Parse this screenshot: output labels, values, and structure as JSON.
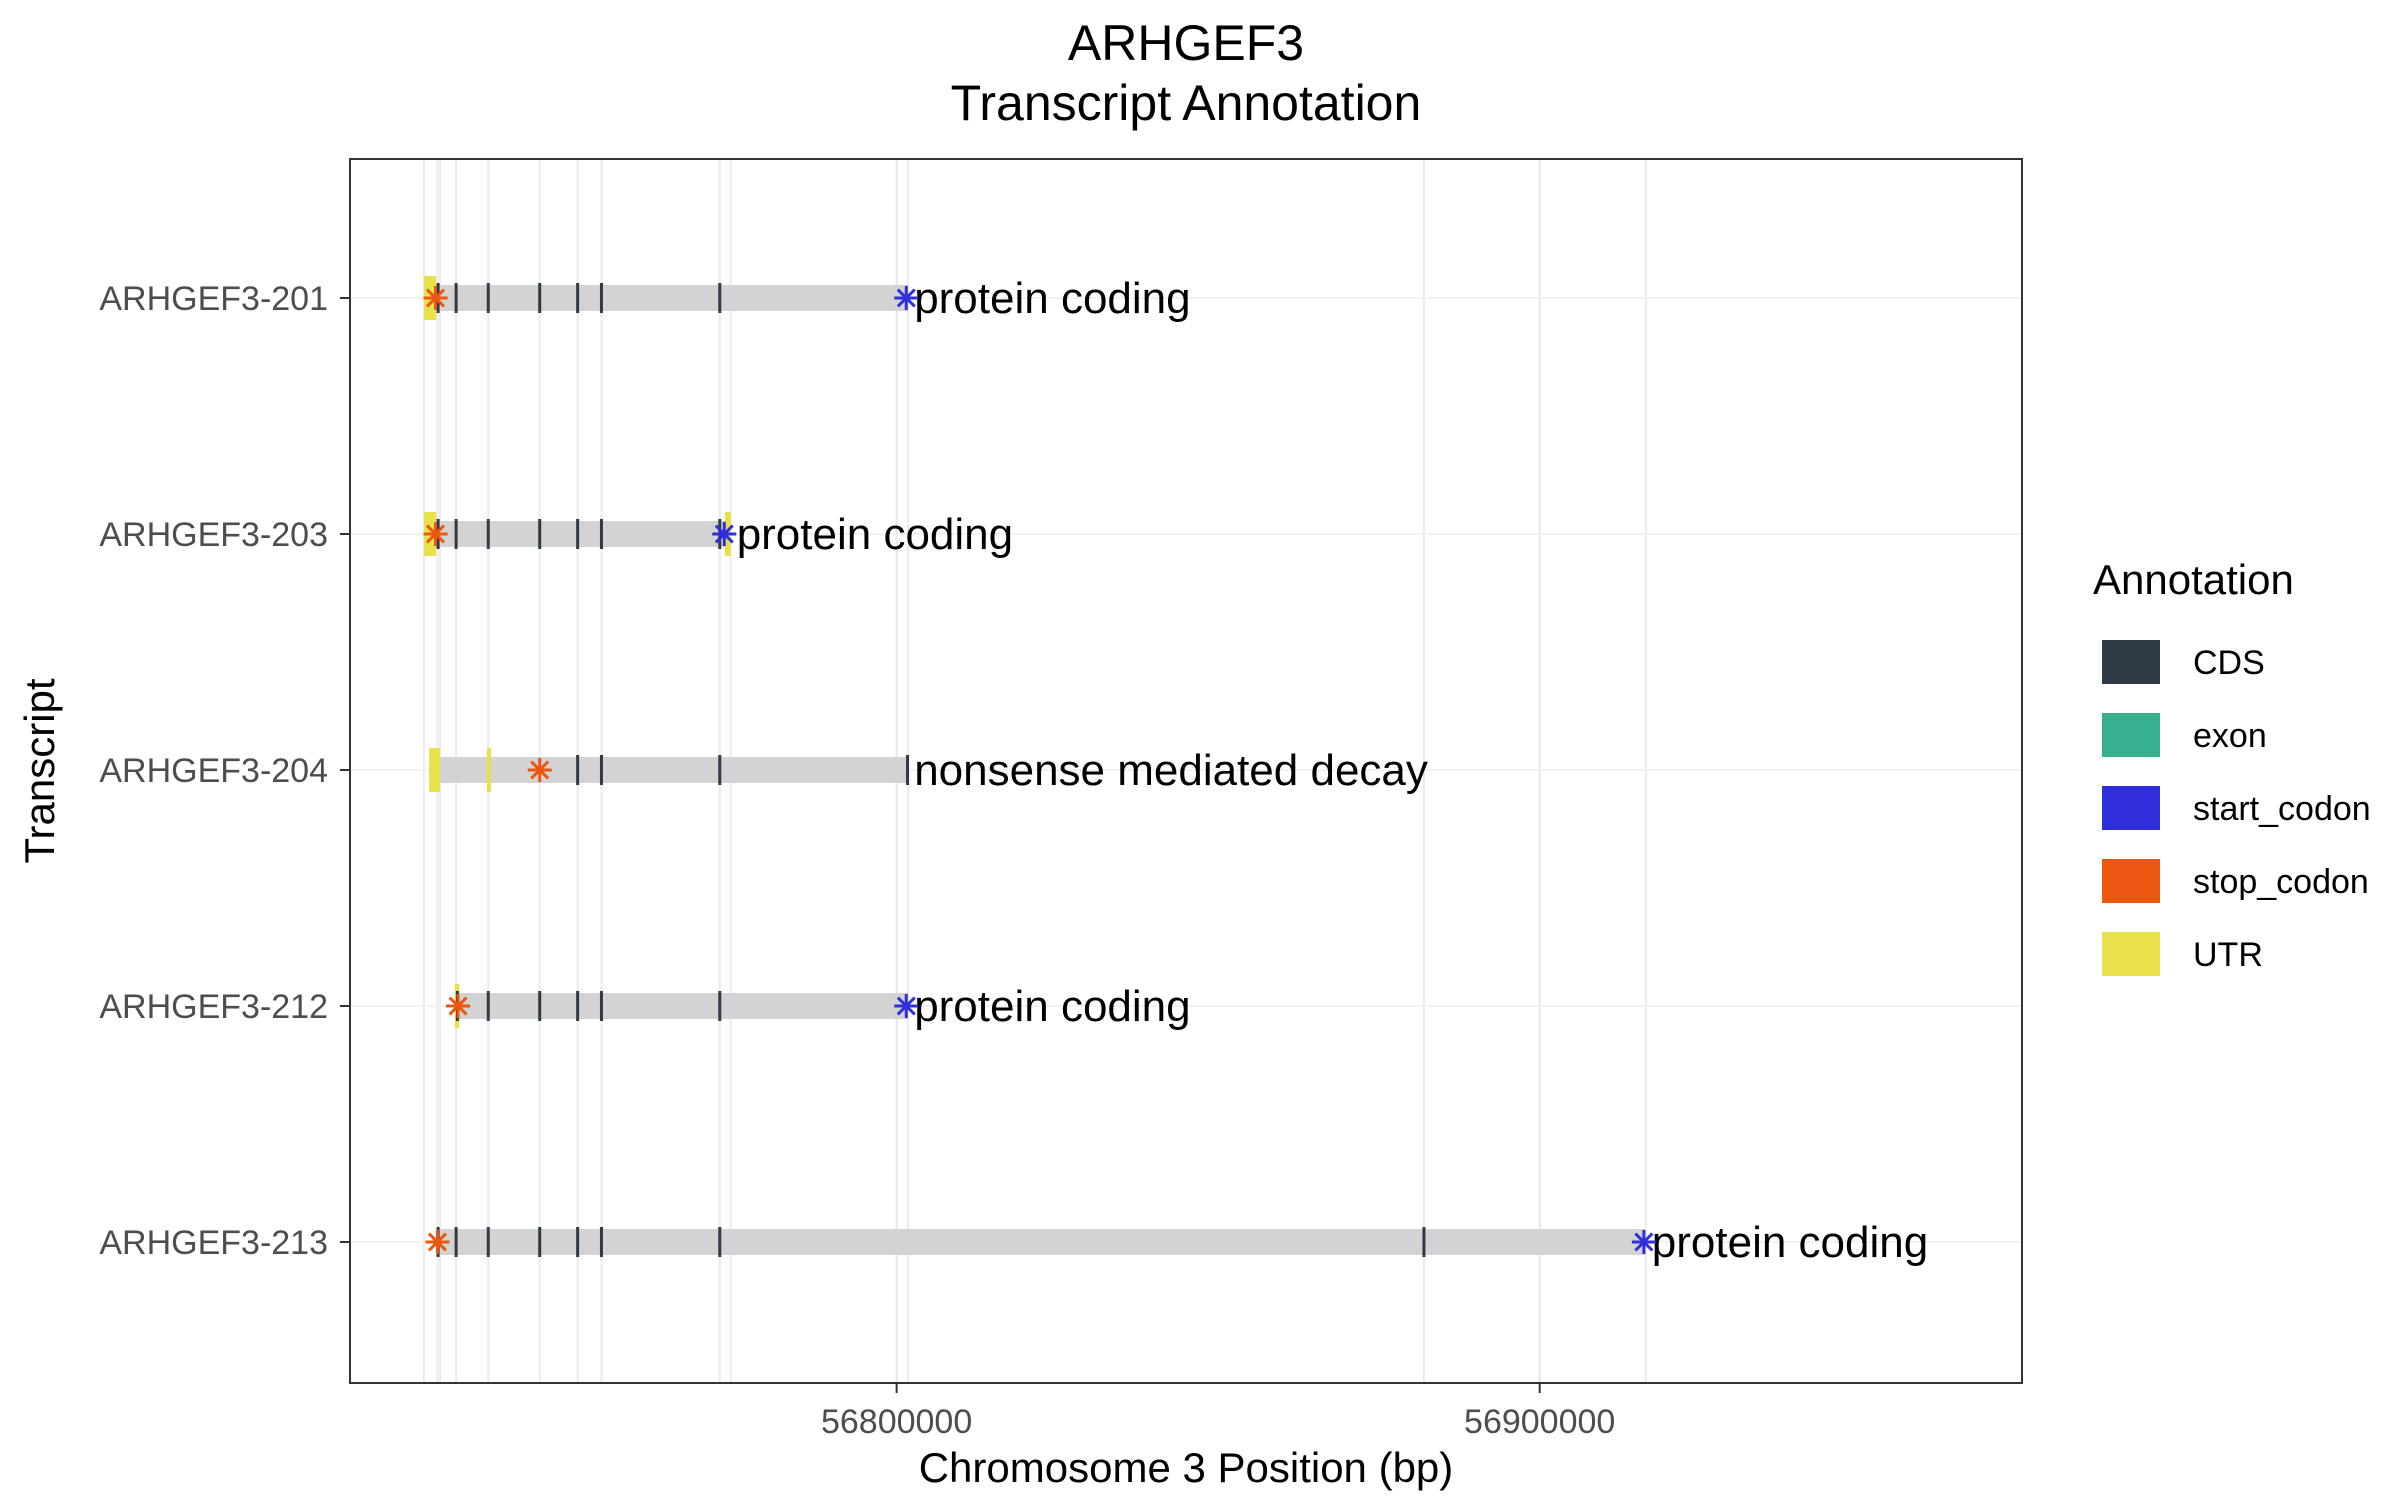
{
  "chart_data": {
    "type": "gene-transcript-annotation",
    "title": "ARHGEF3",
    "subtitle": "Transcript Annotation",
    "xlabel": "Chromosome 3 Position (bp)",
    "ylabel": "Transcript",
    "xlim": [
      56715000,
      56975000
    ],
    "x_ticks": [
      56800000,
      56900000
    ],
    "x_tick_labels": [
      "56800000",
      "56900000"
    ],
    "grid": true,
    "legend_position": "right",
    "legend": {
      "title": "Annotation",
      "items": [
        {
          "label": "CDS",
          "color": "#2E3A45"
        },
        {
          "label": "exon",
          "color": "#36B08F"
        },
        {
          "label": "start_codon",
          "color": "#2F2FDC"
        },
        {
          "label": "stop_codon",
          "color": "#EB5611"
        },
        {
          "label": "UTR",
          "color": "#E9E14B"
        }
      ]
    },
    "colors": {
      "track": "#D3D3D3",
      "CDS": "#2E3A45",
      "exon": "#36B08F",
      "start_codon": "#2F2FDC",
      "stop_codon": "#EB5611",
      "UTR": "#E9E14B"
    },
    "gridline_positions": [
      56726500,
      56728600,
      56729000,
      56731500,
      56736500,
      56744500,
      56750400,
      56754100,
      56772500,
      56774200,
      56801800,
      56882000,
      56916500
    ],
    "transcripts": [
      {
        "name": "ARHGEF3-213",
        "biotype": "protein coding",
        "start": 56728600,
        "end": 56916500,
        "CDS": [
          56728700,
          56731500,
          56736500,
          56744500,
          56750400,
          56754100,
          56772500,
          56882000
        ],
        "UTR": [],
        "start_codon": 56916200,
        "stop_codon": 56728600
      },
      {
        "name": "ARHGEF3-212",
        "biotype": "protein coding",
        "start": 56731300,
        "end": 56801800,
        "CDS": [
          56731700,
          56736500,
          56744500,
          56750400,
          56754100,
          56772500
        ],
        "UTR": [
          [
            56731300,
            56732000
          ]
        ],
        "start_codon": 56801500,
        "stop_codon": 56731800
      },
      {
        "name": "ARHGEF3-204",
        "biotype": "nonsense mediated decay",
        "start": 56727300,
        "end": 56801800,
        "CDS": [
          56750400,
          56754100,
          56772500,
          56801700
        ],
        "UTR": [
          [
            56727300,
            56729000
          ],
          [
            56736300,
            56736800
          ]
        ],
        "start_codon": null,
        "stop_codon": 56744500
      },
      {
        "name": "ARHGEF3-203",
        "biotype": "protein coding",
        "start": 56726500,
        "end": 56774200,
        "CDS": [
          56728700,
          56731500,
          56736500,
          56744500,
          56750400,
          56754100,
          56772500
        ],
        "UTR": [
          [
            56726500,
            56728400
          ],
          [
            56773300,
            56774200
          ]
        ],
        "start_codon": 56773200,
        "stop_codon": 56728300
      },
      {
        "name": "ARHGEF3-201",
        "biotype": "protein coding",
        "start": 56726500,
        "end": 56801800,
        "CDS": [
          56728700,
          56731500,
          56736500,
          56744500,
          56750400,
          56754100,
          56772500
        ],
        "UTR": [
          [
            56726500,
            56728400
          ]
        ],
        "start_codon": 56801500,
        "stop_codon": 56728300
      }
    ]
  }
}
